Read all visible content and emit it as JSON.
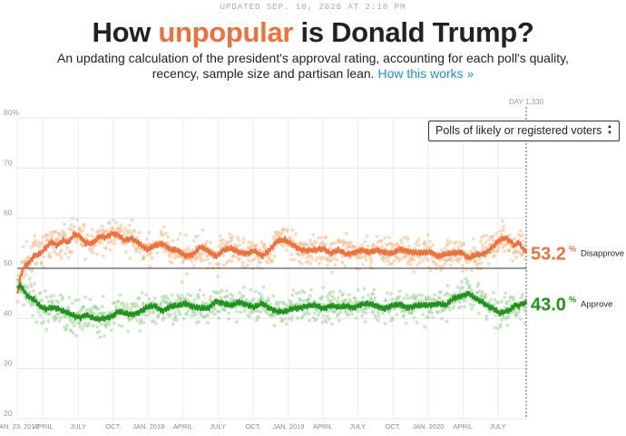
{
  "header": {
    "updated": "UPDATED SEP. 10, 2020 AT 2:18 PM",
    "title_before": "How ",
    "title_accent": "unpopular",
    "title_after": " is Donald Trump?",
    "subtitle": "An updating calculation of the president's approval rating, accounting for each poll's quality, recency, sample size and partisan lean.",
    "how_link": "How this works »"
  },
  "selector": {
    "value": "Polls of likely or registered voters"
  },
  "colors": {
    "disapprove": "#ed713a",
    "approve": "#1e9419",
    "disapprove_dots": "#f6b98b",
    "approve_dots": "#9fd49b"
  },
  "chart_data": {
    "type": "line",
    "ylim": [
      20,
      80
    ],
    "yticks": [
      20,
      30,
      40,
      50,
      60,
      70,
      80
    ],
    "ytick_labels": [
      "20",
      "30",
      "40",
      "50",
      "60",
      "70",
      "80%"
    ],
    "xlim": [
      1,
      1330
    ],
    "day_marker": {
      "day": 1330,
      "label": "DAY 1,330"
    },
    "xticks": [
      {
        "day": 1,
        "label": "JAN. 23, 2017"
      },
      {
        "day": 69,
        "label": "APRIL"
      },
      {
        "day": 160,
        "label": "JULY"
      },
      {
        "day": 252,
        "label": "OCT."
      },
      {
        "day": 344,
        "label": "JAN. 2018"
      },
      {
        "day": 434,
        "label": "APRIL"
      },
      {
        "day": 525,
        "label": "JULY"
      },
      {
        "day": 617,
        "label": "OCT."
      },
      {
        "day": 709,
        "label": "JAN. 2019"
      },
      {
        "day": 799,
        "label": "APRIL"
      },
      {
        "day": 890,
        "label": "JULY"
      },
      {
        "day": 982,
        "label": "OCT."
      },
      {
        "day": 1074,
        "label": "JAN. 2020"
      },
      {
        "day": 1165,
        "label": "APRIL"
      },
      {
        "day": 1256,
        "label": "JULY"
      }
    ],
    "reference_line": 50,
    "series": [
      {
        "name": "Disapprove",
        "current": "53.2",
        "x": [
          1,
          10,
          20,
          30,
          45,
          60,
          75,
          90,
          105,
          120,
          135,
          150,
          165,
          180,
          200,
          215,
          230,
          250,
          265,
          280,
          300,
          320,
          340,
          360,
          380,
          400,
          420,
          440,
          460,
          480,
          500,
          520,
          540,
          560,
          580,
          600,
          620,
          640,
          660,
          680,
          700,
          720,
          740,
          760,
          780,
          800,
          820,
          840,
          860,
          880,
          900,
          920,
          940,
          960,
          980,
          1000,
          1020,
          1040,
          1060,
          1080,
          1100,
          1120,
          1140,
          1160,
          1180,
          1200,
          1215,
          1230,
          1245,
          1260,
          1275,
          1290,
          1300,
          1310,
          1320,
          1330
        ],
        "values": [
          44.5,
          48.5,
          50.5,
          51.0,
          52.5,
          52.8,
          54.0,
          55.3,
          54.6,
          55.6,
          55.1,
          56.8,
          56.4,
          55.0,
          55.0,
          56.3,
          56.2,
          57.0,
          56.6,
          55.5,
          56.0,
          55.0,
          53.6,
          54.5,
          55.0,
          53.8,
          53.5,
          52.5,
          52.8,
          54.3,
          53.4,
          52.4,
          53.7,
          53.9,
          53.2,
          53.0,
          53.5,
          52.3,
          53.7,
          55.5,
          55.6,
          54.7,
          53.8,
          53.5,
          53.6,
          54.0,
          53.0,
          53.6,
          52.8,
          53.2,
          53.6,
          53.1,
          53.7,
          53.2,
          52.9,
          53.8,
          53.5,
          53.1,
          53.0,
          53.3,
          52.4,
          52.8,
          53.0,
          53.3,
          52.0,
          52.7,
          52.8,
          53.4,
          54.5,
          55.6,
          56.0,
          55.4,
          54.5,
          55.3,
          54.0,
          53.2
        ]
      },
      {
        "name": "Approve",
        "current": "43.0",
        "x": [
          1,
          10,
          20,
          30,
          45,
          60,
          75,
          90,
          105,
          120,
          135,
          150,
          165,
          180,
          200,
          215,
          230,
          250,
          265,
          280,
          300,
          320,
          340,
          360,
          380,
          400,
          420,
          440,
          460,
          480,
          500,
          520,
          540,
          560,
          580,
          600,
          620,
          640,
          660,
          680,
          700,
          720,
          740,
          760,
          780,
          800,
          820,
          840,
          860,
          880,
          900,
          920,
          940,
          960,
          980,
          1000,
          1020,
          1040,
          1060,
          1080,
          1100,
          1120,
          1140,
          1160,
          1180,
          1200,
          1215,
          1230,
          1245,
          1260,
          1275,
          1290,
          1300,
          1310,
          1320,
          1330
        ],
        "values": [
          46.0,
          46.6,
          45.3,
          44.4,
          43.8,
          42.4,
          41.8,
          42.2,
          42.1,
          41.5,
          41.0,
          40.5,
          40.2,
          40.8,
          40.0,
          39.8,
          40.1,
          40.5,
          41.4,
          41.0,
          40.8,
          41.3,
          42.2,
          42.5,
          41.5,
          42.4,
          42.5,
          43.0,
          42.4,
          42.0,
          42.0,
          43.5,
          43.0,
          42.5,
          43.3,
          42.8,
          42.2,
          43.0,
          42.1,
          41.4,
          41.3,
          42.0,
          42.2,
          42.5,
          42.6,
          42.0,
          42.6,
          42.2,
          42.5,
          42.2,
          42.8,
          42.9,
          42.5,
          42.0,
          42.5,
          42.8,
          42.2,
          42.5,
          42.6,
          42.7,
          43.0,
          42.6,
          44.0,
          44.5,
          45.0,
          43.8,
          43.3,
          42.5,
          42.0,
          41.0,
          41.3,
          41.8,
          42.8,
          42.5,
          43.0,
          43.0
        ]
      }
    ]
  }
}
